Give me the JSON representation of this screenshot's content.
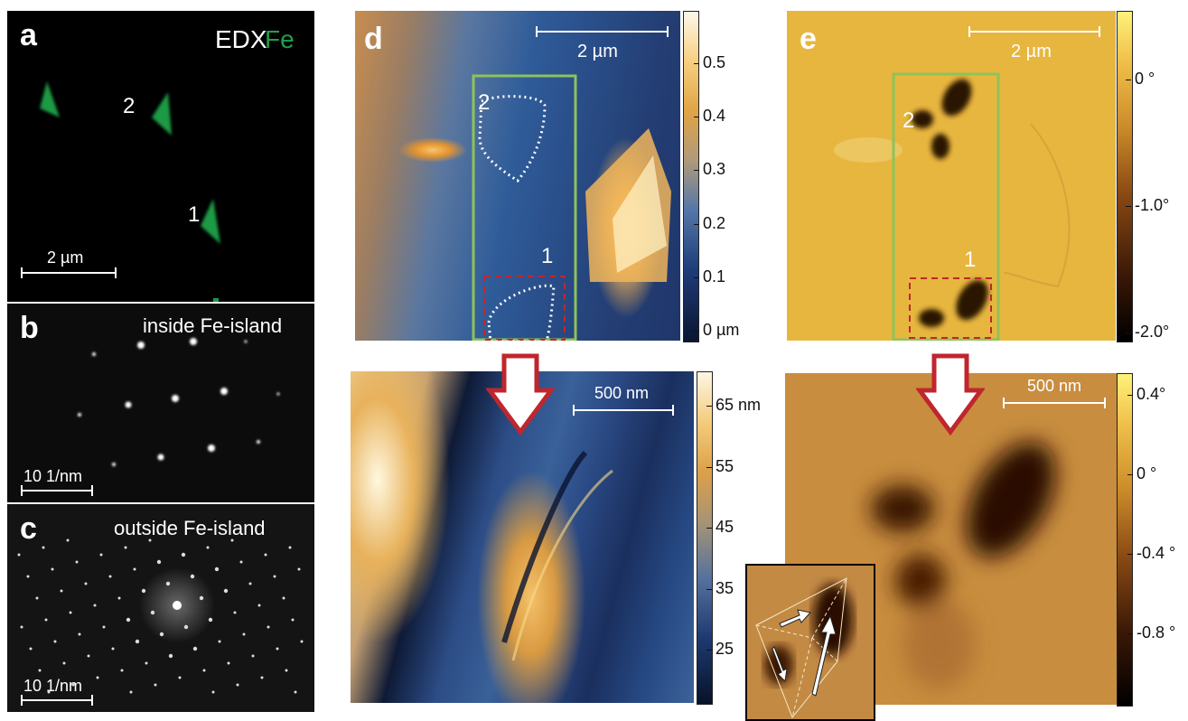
{
  "panel_a": {
    "letter": "a",
    "edx_label": "EDX",
    "element_label": "Fe",
    "island_labels": [
      "2",
      "1"
    ],
    "scalebar": "2 µm"
  },
  "panel_b": {
    "letter": "b",
    "title": "inside Fe-island",
    "scalebar": "10 1/nm"
  },
  "panel_c": {
    "letter": "c",
    "title": "outside Fe-island",
    "scalebar": "10 1/nm"
  },
  "panel_d": {
    "letter": "d",
    "scalebar_top": "2 µm",
    "island_labels": [
      "2",
      "1"
    ],
    "colorbar_top_ticks": [
      "0.5",
      "0.4",
      "0.3",
      "0.2",
      "0.1",
      "0 µm"
    ],
    "scalebar_bottom": "500 nm",
    "colorbar_bottom_ticks": [
      "65 nm",
      "55",
      "45",
      "35",
      "25"
    ]
  },
  "panel_e": {
    "letter": "e",
    "scalebar_top": "2 µm",
    "island_labels": [
      "2",
      "1"
    ],
    "colorbar_top_ticks": [
      "0 °",
      "-1.0°",
      "-2.0°"
    ],
    "scalebar_bottom": "500 nm",
    "colorbar_bottom_ticks": [
      "0.4°",
      "0 °",
      "-0.4 °",
      "-0.8 °"
    ]
  },
  "colors": {
    "edx_green": "#1ea04a",
    "box_green": "#8fc25a",
    "dashed_red": "#c0262e",
    "arrow_red": "#c0262e",
    "letter_d_e": "#ffffff"
  }
}
